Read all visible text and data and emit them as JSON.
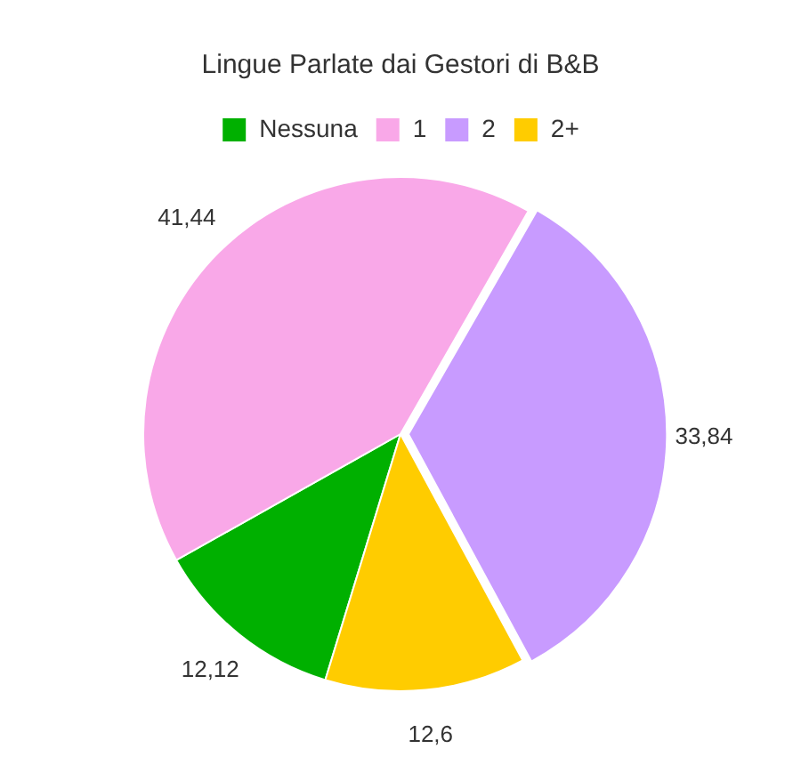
{
  "chart_data": {
    "type": "pie",
    "title": "Lingue Parlate dai Gestori di B&B",
    "categories": [
      "Nessuna",
      "1",
      "2",
      "2+"
    ],
    "values": [
      12.12,
      41.44,
      33.84,
      12.6
    ],
    "value_labels": [
      "12,12",
      "41,44",
      "33,84",
      "12,6"
    ],
    "colors": [
      "#00b000",
      "#f9a8e8",
      "#c89bff",
      "#ffcc00"
    ],
    "legend": "top"
  }
}
